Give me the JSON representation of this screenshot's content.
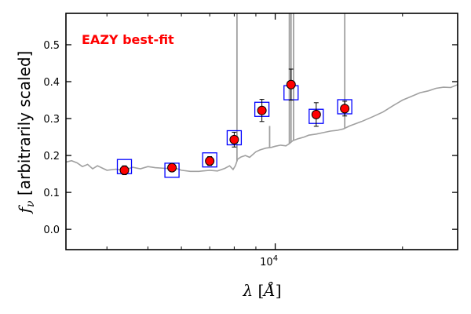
{
  "chart_data": {
    "type": "scatter",
    "title": "",
    "annotation": "EAZY best-fit",
    "annotation_color": "#ff0000",
    "xlabel_symbol": "λ",
    "xlabel_unit": "Å",
    "ylabel_symbol": "f",
    "ylabel_sub": "ν",
    "ylabel_text": "[arbitrarily scaled]",
    "xscale": "log",
    "xlim": [
      3200,
      27000
    ],
    "ylim": [
      -0.055,
      0.585
    ],
    "yticks": [
      0.0,
      0.1,
      0.2,
      0.3,
      0.4,
      0.5
    ],
    "ytick_labels": [
      "0.0",
      "0.1",
      "0.2",
      "0.3",
      "0.4",
      "0.5"
    ],
    "xtick_major": [
      10000
    ],
    "xtick_major_label_base": "10",
    "xtick_major_label_exp": "4",
    "xtick_minor": [
      4000,
      5000,
      6000,
      7000,
      8000,
      9000,
      20000
    ],
    "colors": {
      "template": "#a0a0a0",
      "model_box": "#0000ff",
      "data_point": "#ff0000",
      "errorbar": "#000000"
    },
    "observed_photometry": {
      "label": "observed",
      "x": [
        4400,
        5700,
        7000,
        8000,
        9300,
        10900,
        12500,
        14600
      ],
      "y": [
        0.16,
        0.167,
        0.185,
        0.243,
        0.322,
        0.392,
        0.311,
        0.327
      ],
      "yerr": [
        0.012,
        0.008,
        0.012,
        0.02,
        0.03,
        0.042,
        0.032,
        0.02
      ]
    },
    "model_photometry": {
      "label": "model",
      "x": [
        4400,
        5700,
        7000,
        8000,
        9300,
        10900,
        12500,
        14600
      ],
      "y": [
        0.17,
        0.16,
        0.188,
        0.248,
        0.325,
        0.37,
        0.306,
        0.332
      ]
    },
    "template_spectrum": {
      "label": "EAZY best-fit template",
      "x": [
        3200,
        3300,
        3400,
        3500,
        3600,
        3700,
        3800,
        3900,
        4000,
        4200,
        4400,
        4600,
        4800,
        5000,
        5200,
        5500,
        5800,
        6000,
        6300,
        6600,
        7000,
        7300,
        7600,
        7800,
        7950,
        8050,
        8150,
        8300,
        8500,
        8700,
        9000,
        9200,
        9500,
        9800,
        10000,
        10300,
        10600,
        10800,
        11000,
        11300,
        11700,
        12000,
        12500,
        13000,
        13500,
        14000,
        14500,
        15000,
        16000,
        17000,
        18000,
        19000,
        20000,
        21000,
        22000,
        23000,
        24000,
        25000,
        26000,
        27000
      ],
      "y": [
        0.182,
        0.186,
        0.18,
        0.17,
        0.176,
        0.164,
        0.172,
        0.166,
        0.16,
        0.163,
        0.16,
        0.168,
        0.164,
        0.17,
        0.167,
        0.165,
        0.166,
        0.16,
        0.157,
        0.157,
        0.16,
        0.158,
        0.165,
        0.172,
        0.162,
        0.172,
        0.19,
        0.196,
        0.2,
        0.195,
        0.21,
        0.215,
        0.22,
        0.222,
        0.225,
        0.228,
        0.226,
        0.232,
        0.24,
        0.245,
        0.25,
        0.255,
        0.258,
        0.262,
        0.266,
        0.268,
        0.272,
        0.28,
        0.292,
        0.305,
        0.318,
        0.335,
        0.35,
        0.36,
        0.37,
        0.375,
        0.382,
        0.385,
        0.384,
        0.392
      ]
    },
    "emission_lines": {
      "x": [
        8120,
        9700,
        10800,
        10900,
        11050,
        14600
      ],
      "peak": [
        0.62,
        0.28,
        0.62,
        0.62,
        0.62,
        0.62
      ]
    }
  }
}
